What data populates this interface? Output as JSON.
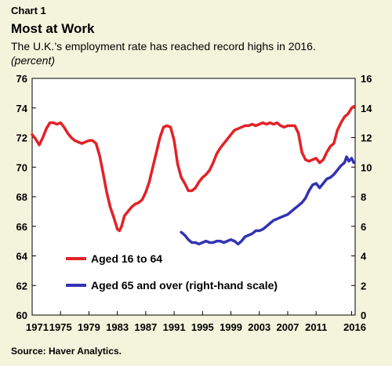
{
  "header": {
    "chart_label": "Chart 1",
    "title": "Most at Work",
    "subtitle": "The U.K.’s employment rate has reached record highs in 2016.",
    "unit": "(percent)"
  },
  "footer": {
    "source": "Source: Haver Analytics."
  },
  "colors": {
    "series_16_64": "#e32227",
    "series_65_over": "#3333b5",
    "background": "#f4f4dd"
  },
  "chart_data": {
    "type": "line",
    "x_ticks": [
      "1971",
      "1975",
      "1979",
      "1983",
      "1987",
      "1991",
      "1995",
      "1999",
      "2003",
      "2007",
      "2011",
      "2016"
    ],
    "xlim": [
      1971,
      2016.5
    ],
    "y_left": {
      "ticks": [
        "76",
        "74",
        "72",
        "70",
        "68",
        "66",
        "64",
        "62",
        "60"
      ],
      "ylim": [
        60,
        76
      ]
    },
    "y_right": {
      "ticks": [
        "16",
        "14",
        "12",
        "10",
        "8",
        "6",
        "4",
        "2",
        "0"
      ],
      "ylim": [
        0,
        16
      ]
    },
    "grid": false,
    "legend_placement": "bottom-left",
    "series": [
      {
        "name": "Aged 16 to 64",
        "axis": "left",
        "points": [
          [
            1971.0,
            72.2
          ],
          [
            1971.5,
            71.9
          ],
          [
            1972.0,
            71.5
          ],
          [
            1972.5,
            72.0
          ],
          [
            1973.0,
            72.6
          ],
          [
            1973.5,
            73.0
          ],
          [
            1974.0,
            73.0
          ],
          [
            1974.5,
            72.9
          ],
          [
            1975.0,
            73.0
          ],
          [
            1975.5,
            72.7
          ],
          [
            1976.0,
            72.3
          ],
          [
            1976.5,
            72.0
          ],
          [
            1977.0,
            71.8
          ],
          [
            1977.5,
            71.7
          ],
          [
            1978.0,
            71.6
          ],
          [
            1978.5,
            71.7
          ],
          [
            1979.0,
            71.8
          ],
          [
            1979.5,
            71.8
          ],
          [
            1980.0,
            71.6
          ],
          [
            1980.5,
            70.8
          ],
          [
            1981.0,
            69.6
          ],
          [
            1981.5,
            68.3
          ],
          [
            1982.0,
            67.3
          ],
          [
            1982.5,
            66.6
          ],
          [
            1983.0,
            65.8
          ],
          [
            1983.3,
            65.7
          ],
          [
            1983.6,
            66.0
          ],
          [
            1984.0,
            66.7
          ],
          [
            1984.5,
            67.0
          ],
          [
            1985.0,
            67.3
          ],
          [
            1985.5,
            67.5
          ],
          [
            1986.0,
            67.6
          ],
          [
            1986.5,
            67.8
          ],
          [
            1987.0,
            68.3
          ],
          [
            1987.5,
            69.0
          ],
          [
            1988.0,
            70.0
          ],
          [
            1988.5,
            71.0
          ],
          [
            1989.0,
            72.0
          ],
          [
            1989.5,
            72.7
          ],
          [
            1990.0,
            72.8
          ],
          [
            1990.5,
            72.7
          ],
          [
            1991.0,
            71.8
          ],
          [
            1991.5,
            70.2
          ],
          [
            1992.0,
            69.3
          ],
          [
            1992.5,
            68.9
          ],
          [
            1993.0,
            68.4
          ],
          [
            1993.5,
            68.4
          ],
          [
            1994.0,
            68.6
          ],
          [
            1994.5,
            69.0
          ],
          [
            1995.0,
            69.3
          ],
          [
            1995.5,
            69.5
          ],
          [
            1996.0,
            69.8
          ],
          [
            1996.5,
            70.3
          ],
          [
            1997.0,
            70.9
          ],
          [
            1997.5,
            71.3
          ],
          [
            1998.0,
            71.6
          ],
          [
            1998.5,
            71.9
          ],
          [
            1999.0,
            72.2
          ],
          [
            1999.5,
            72.5
          ],
          [
            2000.0,
            72.6
          ],
          [
            2000.5,
            72.7
          ],
          [
            2001.0,
            72.8
          ],
          [
            2001.5,
            72.8
          ],
          [
            2002.0,
            72.9
          ],
          [
            2002.5,
            72.8
          ],
          [
            2003.0,
            72.9
          ],
          [
            2003.5,
            73.0
          ],
          [
            2004.0,
            72.9
          ],
          [
            2004.5,
            73.0
          ],
          [
            2005.0,
            72.9
          ],
          [
            2005.5,
            73.0
          ],
          [
            2006.0,
            72.8
          ],
          [
            2006.5,
            72.7
          ],
          [
            2007.0,
            72.8
          ],
          [
            2007.5,
            72.8
          ],
          [
            2008.0,
            72.8
          ],
          [
            2008.5,
            72.3
          ],
          [
            2009.0,
            71.0
          ],
          [
            2009.5,
            70.5
          ],
          [
            2010.0,
            70.4
          ],
          [
            2010.5,
            70.5
          ],
          [
            2011.0,
            70.6
          ],
          [
            2011.5,
            70.3
          ],
          [
            2012.0,
            70.5
          ],
          [
            2012.5,
            71.0
          ],
          [
            2013.0,
            71.4
          ],
          [
            2013.5,
            71.6
          ],
          [
            2014.0,
            72.5
          ],
          [
            2014.5,
            73.0
          ],
          [
            2015.0,
            73.4
          ],
          [
            2015.5,
            73.6
          ],
          [
            2016.0,
            74.0
          ],
          [
            2016.3,
            74.1
          ]
        ]
      },
      {
        "name": "Aged 65 and over (right-hand scale)",
        "axis": "right",
        "points": [
          [
            1992.0,
            5.6
          ],
          [
            1992.5,
            5.4
          ],
          [
            1993.0,
            5.1
          ],
          [
            1993.5,
            4.9
          ],
          [
            1994.0,
            4.9
          ],
          [
            1994.5,
            4.8
          ],
          [
            1995.0,
            4.9
          ],
          [
            1995.5,
            5.0
          ],
          [
            1996.0,
            4.9
          ],
          [
            1996.5,
            4.9
          ],
          [
            1997.0,
            5.0
          ],
          [
            1997.5,
            5.0
          ],
          [
            1998.0,
            4.9
          ],
          [
            1998.5,
            5.0
          ],
          [
            1999.0,
            5.1
          ],
          [
            1999.5,
            5.0
          ],
          [
            2000.0,
            4.8
          ],
          [
            2000.5,
            5.0
          ],
          [
            2001.0,
            5.3
          ],
          [
            2001.5,
            5.4
          ],
          [
            2002.0,
            5.5
          ],
          [
            2002.5,
            5.7
          ],
          [
            2003.0,
            5.7
          ],
          [
            2003.5,
            5.8
          ],
          [
            2004.0,
            6.0
          ],
          [
            2004.5,
            6.2
          ],
          [
            2005.0,
            6.4
          ],
          [
            2005.5,
            6.5
          ],
          [
            2006.0,
            6.6
          ],
          [
            2006.5,
            6.7
          ],
          [
            2007.0,
            6.8
          ],
          [
            2007.5,
            7.0
          ],
          [
            2008.0,
            7.2
          ],
          [
            2008.5,
            7.4
          ],
          [
            2009.0,
            7.6
          ],
          [
            2009.5,
            7.9
          ],
          [
            2010.0,
            8.4
          ],
          [
            2010.5,
            8.8
          ],
          [
            2011.0,
            8.9
          ],
          [
            2011.5,
            8.6
          ],
          [
            2012.0,
            8.9
          ],
          [
            2012.5,
            9.2
          ],
          [
            2013.0,
            9.3
          ],
          [
            2013.5,
            9.5
          ],
          [
            2014.0,
            9.8
          ],
          [
            2014.5,
            10.1
          ],
          [
            2015.0,
            10.3
          ],
          [
            2015.3,
            10.7
          ],
          [
            2015.6,
            10.4
          ],
          [
            2016.0,
            10.6
          ],
          [
            2016.3,
            10.3
          ]
        ]
      }
    ]
  }
}
